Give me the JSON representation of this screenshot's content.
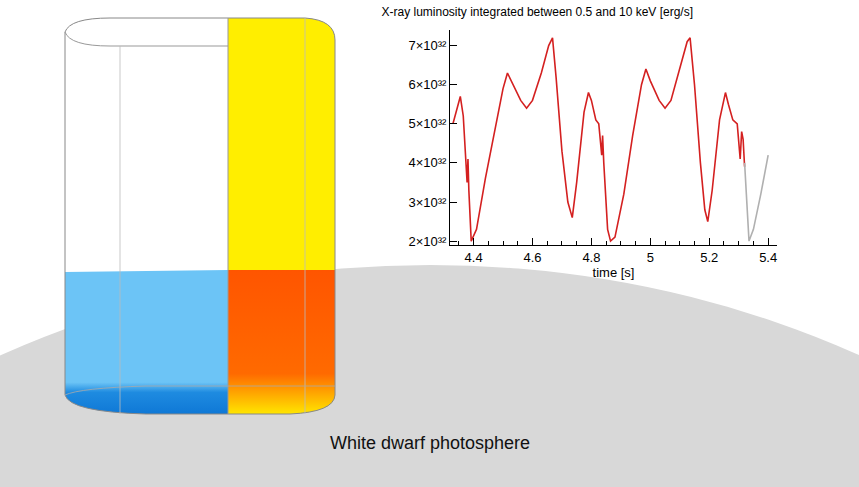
{
  "chart_data": {
    "type": "line",
    "title": "X-ray luminosity integrated between 0.5 and 10 keV [erg/s]",
    "x_label": "time [s]",
    "xlim": [
      4.32,
      5.43
    ],
    "xticks": [
      4.4,
      4.6,
      4.8,
      5.0,
      5.2,
      5.4
    ],
    "ylim": [
      1.9e+32,
      7.4e+32
    ],
    "yticks": [
      {
        "value": 2e+32,
        "label": "2×10³²"
      },
      {
        "value": 3e+32,
        "label": "3×10³²"
      },
      {
        "value": 4e+32,
        "label": "4×10³²"
      },
      {
        "value": 5e+32,
        "label": "5×10³²"
      },
      {
        "value": 6e+32,
        "label": "6×10³²"
      },
      {
        "value": 7e+32,
        "label": "7×10³²"
      }
    ],
    "grid": false,
    "series": [
      {
        "color": "#d42020",
        "line_style": "solid",
        "x": [
          4.33,
          4.345,
          4.355,
          4.365,
          4.375,
          4.378,
          4.381,
          4.384,
          4.392,
          4.41,
          4.44,
          4.47,
          4.5,
          4.515,
          4.535,
          4.56,
          4.58,
          4.6,
          4.63,
          4.655,
          4.668,
          4.68,
          4.7,
          4.72,
          4.735,
          4.75,
          4.775,
          4.79,
          4.8,
          4.815,
          4.825,
          4.83,
          4.835,
          4.838,
          4.842,
          4.855,
          4.865,
          4.88,
          4.91,
          4.94,
          4.97,
          4.985,
          5.0,
          5.03,
          5.05,
          5.07,
          5.1,
          5.125,
          5.135,
          5.15,
          5.17,
          5.185,
          5.195,
          5.21,
          5.235,
          5.255,
          5.265,
          5.28,
          5.295,
          5.3,
          5.305,
          5.31,
          5.315,
          5.32
        ],
        "values": [
          5e+32,
          5.4e+32,
          5.7e+32,
          5.2e+32,
          4.1e+32,
          3.5e+32,
          4.1e+32,
          3.3e+32,
          2e+32,
          2.3e+32,
          3.6e+32,
          4.8e+32,
          5.9e+32,
          6.3e+32,
          6e+32,
          5.6e+32,
          5.4e+32,
          5.6e+32,
          6.3e+32,
          7e+32,
          7.2e+32,
          6.2e+32,
          4.3e+32,
          3e+32,
          2.6e+32,
          3.5e+32,
          5.3e+32,
          5.8e+32,
          5.6e+32,
          5.1e+32,
          5e+32,
          4.5e+32,
          4.2e+32,
          4.7e+32,
          4e+32,
          2.3e+32,
          2e+32,
          2.1e+32,
          3.2e+32,
          4.7e+32,
          6e+32,
          6.4e+32,
          6.1e+32,
          5.6e+32,
          5.4e+32,
          5.6e+32,
          6.4e+32,
          7.1e+32,
          7.2e+32,
          6e+32,
          4e+32,
          2.8e+32,
          2.5e+32,
          3.3e+32,
          5.1e+32,
          5.8e+32,
          5.5e+32,
          5.1e+32,
          5e+32,
          4.6e+32,
          4.1e+32,
          4.8e+32,
          4.6e+32,
          3.9e+32
        ]
      },
      {
        "color": "#b0b0b0",
        "line_style": "solid",
        "x": [
          5.32,
          5.322,
          5.33,
          5.335,
          5.35,
          5.375,
          5.4
        ],
        "values": [
          4e+32,
          3.7e+32,
          2.4e+32,
          2e+32,
          2.3e+32,
          3.2e+32,
          4.2e+32
        ]
      }
    ]
  },
  "caption": "White dwarf photosphere"
}
